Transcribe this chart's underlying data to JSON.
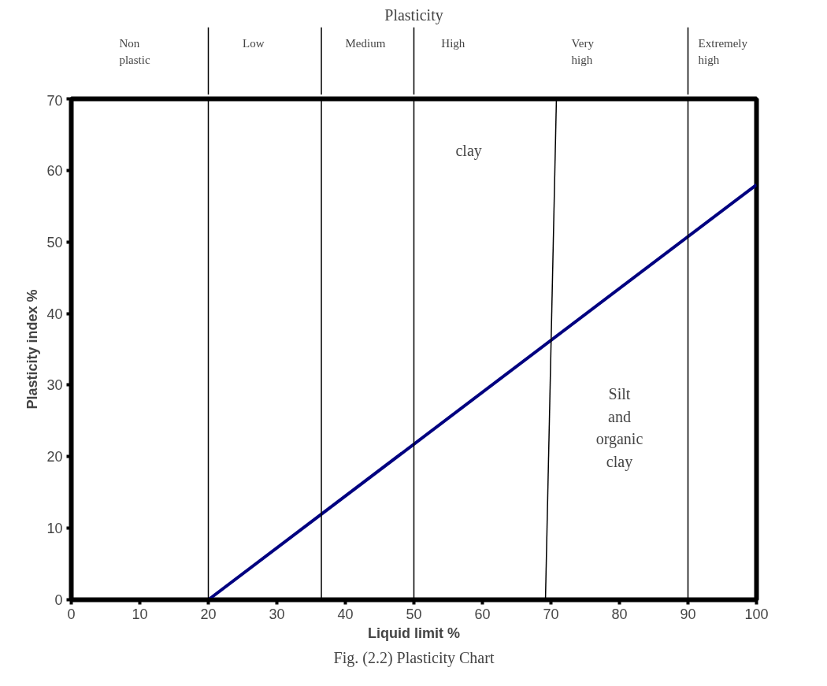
{
  "chart_data": {
    "type": "line",
    "title": "Plasticity",
    "xlabel": "Liquid limit %",
    "ylabel": "Plasticity index %",
    "xlim": [
      0,
      100
    ],
    "ylim": [
      0,
      70
    ],
    "xticks": [
      0,
      10,
      20,
      30,
      40,
      50,
      60,
      70,
      80,
      90,
      100
    ],
    "yticks": [
      0,
      10,
      20,
      30,
      40,
      50,
      60,
      70
    ],
    "grid": false,
    "marker": "none",
    "line_style": "solid",
    "series": [
      {
        "color": "#000080",
        "x": [
          20,
          100
        ],
        "values": [
          0,
          58
        ]
      },
      {
        "color": "#000000",
        "x": [
          69.2,
          70.8
        ],
        "values": [
          0,
          70
        ]
      }
    ],
    "ref_lines": [
      {
        "axis": "x",
        "value": 20,
        "color": "#000000"
      },
      {
        "axis": "x",
        "value": 36.5,
        "color": "#000000"
      },
      {
        "axis": "x",
        "value": 50,
        "color": "#000000"
      },
      {
        "axis": "x",
        "value": 90,
        "color": "#000000"
      }
    ],
    "annotations": [
      "Non plastic",
      "Low",
      "Medium",
      "High",
      "Very high",
      "Extremely high",
      "clay",
      "Silt and organic clay",
      "Fig. (2.2) Plasticity Chart"
    ]
  }
}
